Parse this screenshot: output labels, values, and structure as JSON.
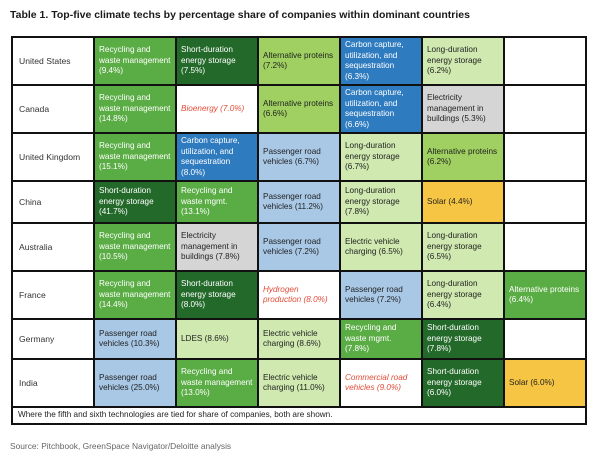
{
  "title": "Table 1. Top-five climate techs by percentage share of companies within dominant countries",
  "rows": [
    {
      "country": "United States",
      "cells": [
        {
          "text": "Recycling and waste management (9.4%)",
          "style": "c-md"
        },
        {
          "text": "Short-duration energy storage (7.5%)",
          "style": "c-dk"
        },
        {
          "text": "Alternative proteins (7.2%)",
          "style": "c-lg"
        },
        {
          "text": "Carbon capture, utilization, and sequestration (6.3%)",
          "style": "c-bl"
        },
        {
          "text": "Long-duration energy storage (6.2%)",
          "style": "c-pl"
        },
        {
          "text": "",
          "style": "c-wh"
        }
      ]
    },
    {
      "country": "Canada",
      "cells": [
        {
          "text": "Recycling and waste management (14.8%)",
          "style": "c-md"
        },
        {
          "text": "Bioenergy (7.0%)",
          "style": "c-it"
        },
        {
          "text": "Alternative proteins (6.6%)",
          "style": "c-lg"
        },
        {
          "text": "Carbon capture, utilization, and sequestration (6.6%)",
          "style": "c-bl"
        },
        {
          "text": "Electricity management in buildings (5.3%)",
          "style": "c-gr"
        },
        {
          "text": "",
          "style": "c-wh"
        }
      ]
    },
    {
      "country": "United Kingdom",
      "cells": [
        {
          "text": "Recycling and waste management (15.1%)",
          "style": "c-md"
        },
        {
          "text": "Carbon capture, utilization, and sequestration (8.0%)",
          "style": "c-bl"
        },
        {
          "text": "Passenger road vehicles (6.7%)",
          "style": "c-lb"
        },
        {
          "text": "Long-duration energy storage (6.7%)",
          "style": "c-pl"
        },
        {
          "text": "Alternative proteins (6.2%)",
          "style": "c-lg"
        },
        {
          "text": "",
          "style": "c-wh"
        }
      ]
    },
    {
      "country": "China",
      "cells": [
        {
          "text": "Short-duration energy storage (41.7%)",
          "style": "c-dk"
        },
        {
          "text": "Recycling and waste mgmt. (13.1%)",
          "style": "c-md"
        },
        {
          "text": "Passenger road vehicles (11.2%)",
          "style": "c-lb"
        },
        {
          "text": "Long-duration energy storage (7.8%)",
          "style": "c-pl"
        },
        {
          "text": "Solar (4.4%)",
          "style": "c-ye"
        },
        {
          "text": "",
          "style": "c-wh"
        }
      ]
    },
    {
      "country": "Australia",
      "cells": [
        {
          "text": "Recycling and waste management (10.5%)",
          "style": "c-md"
        },
        {
          "text": "Electricity management in buildings (7.8%)",
          "style": "c-gr"
        },
        {
          "text": "Passenger road vehicles (7.2%)",
          "style": "c-lb"
        },
        {
          "text": "Electric vehicle charging (6.5%)",
          "style": "c-pl"
        },
        {
          "text": "Long-duration energy storage (6.5%)",
          "style": "c-pl"
        },
        {
          "text": "",
          "style": "c-wh"
        }
      ]
    },
    {
      "country": "France",
      "cells": [
        {
          "text": "Recycling and waste management (14.4%)",
          "style": "c-md"
        },
        {
          "text": "Short-duration energy storage (8.0%)",
          "style": "c-dk"
        },
        {
          "text": "Hydrogen production (8.0%)",
          "style": "c-it"
        },
        {
          "text": "Passenger road vehicles (7.2%)",
          "style": "c-lb"
        },
        {
          "text": "Long-duration energy storage (6.4%)",
          "style": "c-pl"
        },
        {
          "text": "Alternative proteins (6.4%)",
          "style": "c-md"
        }
      ]
    },
    {
      "country": "Germany",
      "cells": [
        {
          "text": "Passenger road vehicles (10.3%)",
          "style": "c-lb"
        },
        {
          "text": "LDES (8.6%)",
          "style": "c-pl"
        },
        {
          "text": "Electric vehicle charging (8.6%)",
          "style": "c-pl"
        },
        {
          "text": "Recycling and waste mgmt. (7.8%)",
          "style": "c-md"
        },
        {
          "text": "Short-duration energy storage (7.8%)",
          "style": "c-dk"
        },
        {
          "text": "",
          "style": "c-wh"
        }
      ]
    },
    {
      "country": "India",
      "cells": [
        {
          "text": "Passenger road vehicles (25.0%)",
          "style": "c-lb"
        },
        {
          "text": "Recycling and waste management (13.0%)",
          "style": "c-md"
        },
        {
          "text": "Electric vehicle charging (11.0%)",
          "style": "c-pl"
        },
        {
          "text": "Commercial road vehicles (9.0%)",
          "style": "c-it"
        },
        {
          "text": "Short-duration energy storage (6.0%)",
          "style": "c-dk"
        },
        {
          "text": "Solar (6.0%)",
          "style": "c-ye"
        }
      ]
    }
  ],
  "footnote": "Where the fifth and sixth technologies are tied for share of companies, both are shown.",
  "source": "Source: Pitchbook, GreenSpace Navigator/Deloitte analysis"
}
